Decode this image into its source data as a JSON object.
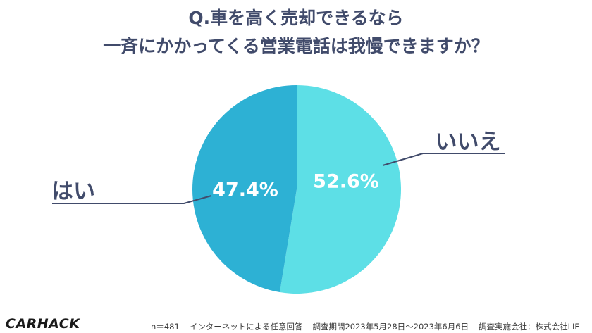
{
  "title": {
    "line1": "Q.車を高く売却できるなら",
    "line2": "一斉にかかってくる営業電話は我慢できますか？"
  },
  "chart_data": {
    "type": "pie",
    "slices": [
      {
        "label": "いいえ",
        "value": 52.6,
        "value_label": "52.6%",
        "color": "#5ddfe6"
      },
      {
        "label": "はい",
        "value": 47.4,
        "value_label": "47.4%",
        "color": "#2db1d4"
      }
    ],
    "start": "top",
    "direction": "clockwise"
  },
  "footer": {
    "logo": "CARHACK",
    "sample": "n＝481",
    "method": "インターネットによる任意回答",
    "period": "調査期間2023年5月28日〜2023年6月6日",
    "company": "調査実施会社：株式会社LIF"
  }
}
